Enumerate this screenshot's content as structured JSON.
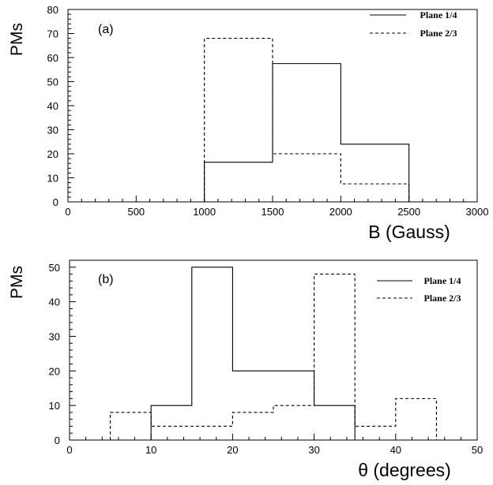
{
  "chart_data": [
    {
      "type": "histogram",
      "panel_label": "(a)",
      "xlabel": "B (Gauss)",
      "ylabel": "PMs",
      "xlim": [
        0,
        3000
      ],
      "ylim": [
        0,
        80
      ],
      "x_ticks": [
        "0",
        "500",
        "1000",
        "1500",
        "2000",
        "2500",
        "3000"
      ],
      "y_ticks": [
        "0",
        "10",
        "20",
        "30",
        "40",
        "50",
        "60",
        "70",
        "80"
      ],
      "legend_position": "top-right",
      "bin_edges": [
        1000,
        1500,
        2000,
        2500
      ],
      "series": [
        {
          "name": "Plane 1/4",
          "style": "solid",
          "values": [
            16.5,
            57.5,
            24
          ]
        },
        {
          "name": "Plane 2/3",
          "style": "dashed",
          "values": [
            68,
            20,
            7.5
          ]
        }
      ]
    },
    {
      "type": "histogram",
      "panel_label": "(b)",
      "xlabel": "θ (degrees)",
      "ylabel": "PMs",
      "xlim": [
        0,
        50
      ],
      "ylim": [
        0,
        52
      ],
      "x_ticks": [
        "0",
        "10",
        "20",
        "30",
        "40",
        "50"
      ],
      "y_ticks": [
        "0",
        "10",
        "20",
        "30",
        "40",
        "50"
      ],
      "legend_position": "top-right",
      "bin_edges": [
        5,
        10,
        15,
        20,
        25,
        30,
        35,
        40,
        45
      ],
      "series": [
        {
          "name": "Plane 1/4",
          "style": "solid",
          "values": [
            0,
            10,
            50,
            20,
            20,
            10,
            0,
            0
          ]
        },
        {
          "name": "Plane 2/3",
          "style": "dashed",
          "values": [
            8,
            4,
            4,
            8,
            10,
            48,
            4,
            12
          ]
        }
      ]
    }
  ]
}
